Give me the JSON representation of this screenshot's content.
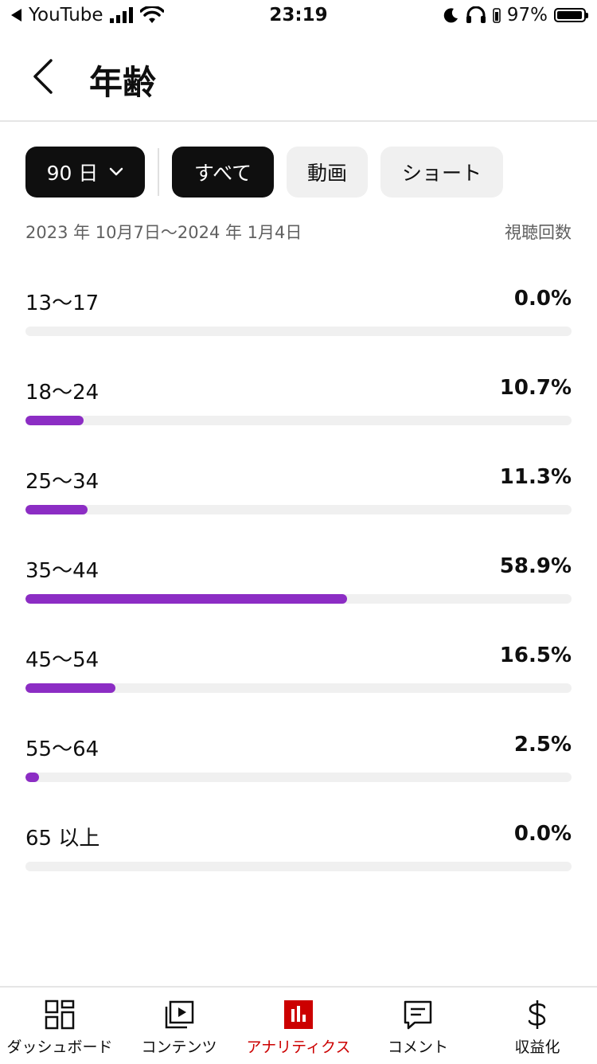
{
  "status_bar": {
    "back_app": "YouTube",
    "time": "23:19",
    "battery": "97%",
    "battery_level": 0.97
  },
  "header": {
    "title": "年齢"
  },
  "filters": {
    "period": "90 日",
    "all": "すべて",
    "video": "動画",
    "shorts": "ショート"
  },
  "date_range": "2023 年 10月7日～2024 年 1月4日",
  "metric_label": "視聴回数",
  "age_groups": [
    {
      "label": "13～17",
      "value": "0.0%",
      "percent": 0.0
    },
    {
      "label": "18～24",
      "value": "10.7%",
      "percent": 10.7
    },
    {
      "label": "25～34",
      "value": "11.3%",
      "percent": 11.3
    },
    {
      "label": "35～44",
      "value": "58.9%",
      "percent": 58.9
    },
    {
      "label": "45～54",
      "value": "16.5%",
      "percent": 16.5
    },
    {
      "label": "55～64",
      "value": "2.5%",
      "percent": 2.5
    },
    {
      "label": "65 以上",
      "value": "0.0%",
      "percent": 0.0
    }
  ],
  "colors": {
    "bar_fill": "#8c2dc4",
    "active_nav": "#cc0000"
  },
  "bottom_nav": [
    {
      "label": "ダッシュボード",
      "icon": "dashboard-icon"
    },
    {
      "label": "コンテンツ",
      "icon": "content-icon"
    },
    {
      "label": "アナリティクス",
      "icon": "analytics-icon",
      "active": true
    },
    {
      "label": "コメント",
      "icon": "comment-icon"
    },
    {
      "label": "収益化",
      "icon": "dollar-icon"
    }
  ]
}
